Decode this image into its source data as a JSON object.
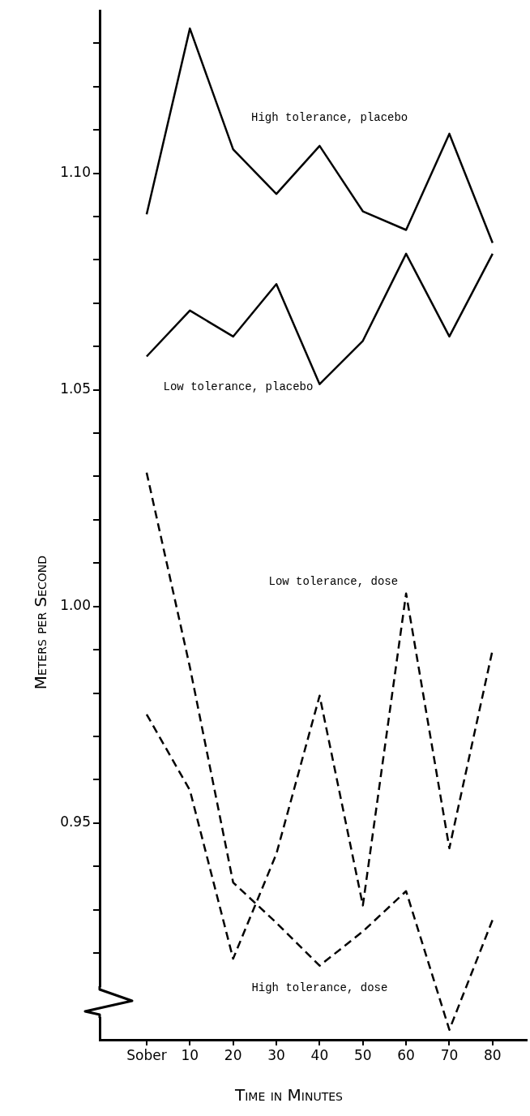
{
  "chart_data": {
    "type": "line",
    "xlabel": "Time in Minutes",
    "ylabel": "Meters per Second",
    "categories": [
      "Sober",
      "10",
      "20",
      "30",
      "40",
      "50",
      "60",
      "70",
      "80"
    ],
    "series": [
      {
        "name": "High tolerance, placebo",
        "color": "#000000",
        "line_style": "solid",
        "values": [
          1.0905,
          1.1334,
          1.1055,
          1.0952,
          1.1063,
          1.0912,
          1.0869,
          1.1091,
          1.0839
        ]
      },
      {
        "name": "Low tolerance, placebo",
        "color": "#000000",
        "line_style": "solid",
        "values": [
          1.0577,
          1.0683,
          1.0623,
          1.0744,
          1.0513,
          1.0613,
          1.0814,
          1.0623,
          1.0814
        ]
      },
      {
        "name": "Low tolerance, dose",
        "color": "#000000",
        "line_style": "dashed",
        "values": [
          0.9751,
          0.9576,
          0.9187,
          0.9429,
          0.9794,
          0.931,
          1.003,
          0.9442,
          0.99
        ]
      },
      {
        "name": "High tolerance, dose",
        "color": "#000000",
        "line_style": "dashed",
        "values": [
          1.0309,
          0.986,
          0.9363,
          0.927,
          0.9171,
          0.925,
          0.9343,
          0.9023,
          0.9277
        ]
      }
    ],
    "ylim": [
      0.9,
      1.1375
    ],
    "yticks": [
      {
        "value": 0.92,
        "label": null
      },
      {
        "value": 0.93,
        "label": null
      },
      {
        "value": 0.94,
        "label": null
      },
      {
        "value": 0.95,
        "label": "0.95"
      },
      {
        "value": 0.96,
        "label": null
      },
      {
        "value": 0.97,
        "label": null
      },
      {
        "value": 0.98,
        "label": null
      },
      {
        "value": 0.99,
        "label": null
      },
      {
        "value": 1.0,
        "label": "1.00"
      },
      {
        "value": 1.01,
        "label": null
      },
      {
        "value": 1.02,
        "label": null
      },
      {
        "value": 1.03,
        "label": null
      },
      {
        "value": 1.04,
        "label": null
      },
      {
        "value": 1.05,
        "label": "1.05"
      },
      {
        "value": 1.06,
        "label": null
      },
      {
        "value": 1.07,
        "label": null
      },
      {
        "value": 1.08,
        "label": null
      },
      {
        "value": 1.09,
        "label": null
      },
      {
        "value": 1.1,
        "label": "1.10"
      },
      {
        "value": 1.11,
        "label": null
      },
      {
        "value": 1.12,
        "label": null
      },
      {
        "value": 1.13,
        "label": null
      }
    ],
    "grid": false,
    "legend": false,
    "marker": "none"
  }
}
